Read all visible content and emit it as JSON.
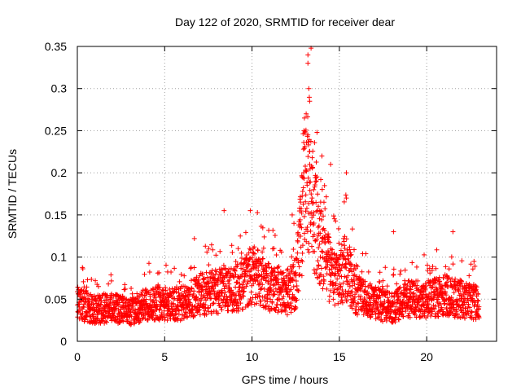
{
  "chart_data": {
    "type": "scatter",
    "title": "Day 122 of 2020, SRMTID for receiver dear",
    "xlabel": "GPS time / hours",
    "ylabel": "SRMTID / TECUs",
    "xlim": [
      0,
      24
    ],
    "ylim": [
      0,
      0.35
    ],
    "xticks": [
      0,
      5,
      10,
      15,
      20
    ],
    "xtick_labels": [
      "0",
      "5",
      "10",
      "15",
      "20"
    ],
    "yticks": [
      0,
      0.05,
      0.1,
      0.15,
      0.2,
      0.25,
      0.3,
      0.35
    ],
    "ytick_labels": [
      "0",
      "0.05",
      "0.1",
      "0.15",
      "0.2",
      "0.25",
      "0.3",
      "0.35"
    ],
    "grid": true,
    "marker": "+",
    "color": "#ff0000",
    "series": [
      {
        "name": "SRMTID",
        "x_range": [
          0,
          23
        ],
        "x_step_hours": 0.0083,
        "baseline_profile": [
          [
            0,
            0.045
          ],
          [
            1,
            0.038
          ],
          [
            2,
            0.04
          ],
          [
            3,
            0.035
          ],
          [
            4,
            0.045
          ],
          [
            5,
            0.045
          ],
          [
            6,
            0.045
          ],
          [
            7,
            0.055
          ],
          [
            8,
            0.06
          ],
          [
            9,
            0.06
          ],
          [
            10,
            0.08
          ],
          [
            11,
            0.065
          ],
          [
            12,
            0.055
          ],
          [
            12.5,
            0.07
          ],
          [
            13,
            0.17
          ],
          [
            13.3,
            0.19
          ],
          [
            13.6,
            0.14
          ],
          [
            14,
            0.11
          ],
          [
            14.5,
            0.08
          ],
          [
            15,
            0.07
          ],
          [
            15.3,
            0.09
          ],
          [
            15.7,
            0.07
          ],
          [
            16,
            0.055
          ],
          [
            17,
            0.045
          ],
          [
            18,
            0.04
          ],
          [
            19,
            0.05
          ],
          [
            20,
            0.05
          ],
          [
            21,
            0.055
          ],
          [
            22,
            0.05
          ],
          [
            23,
            0.045
          ]
        ],
        "highlights": [
          [
            13.2,
            0.34
          ],
          [
            13.2,
            0.33
          ],
          [
            13.25,
            0.3
          ],
          [
            13.1,
            0.27
          ],
          [
            13.3,
            0.285
          ],
          [
            13.2,
            0.245
          ],
          [
            13.0,
            0.265
          ],
          [
            13.3,
            0.21
          ],
          [
            14.0,
            0.22
          ],
          [
            14.5,
            0.21
          ],
          [
            15.4,
            0.2
          ],
          [
            15.4,
            0.17
          ],
          [
            8.4,
            0.155
          ],
          [
            9.9,
            0.155
          ],
          [
            6.7,
            0.122
          ],
          [
            18.1,
            0.13
          ],
          [
            21.5,
            0.13
          ],
          [
            12.4,
            0.14
          ],
          [
            12.3,
            0.15
          ]
        ]
      }
    ]
  }
}
